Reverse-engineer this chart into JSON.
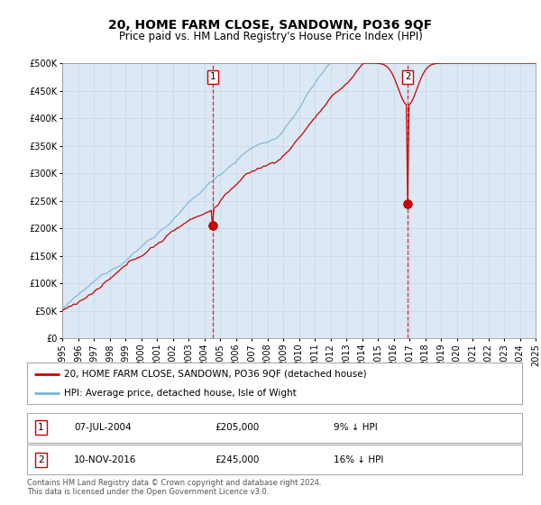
{
  "title": "20, HOME FARM CLOSE, SANDOWN, PO36 9QF",
  "subtitle": "Price paid vs. HM Land Registry's House Price Index (HPI)",
  "hpi_color": "#7ab4d8",
  "price_color": "#cc0000",
  "plot_bg": "#dce8f4",
  "grid_color": "#b8cfe0",
  "ylim": [
    0,
    500000
  ],
  "yticks": [
    0,
    50000,
    100000,
    150000,
    200000,
    250000,
    300000,
    350000,
    400000,
    450000,
    500000
  ],
  "sale1_year": 2004.52,
  "sale1_price": 205000,
  "sale2_year": 2016.86,
  "sale2_price": 245000,
  "legend_line1": "20, HOME FARM CLOSE, SANDOWN, PO36 9QF (detached house)",
  "legend_line2": "HPI: Average price, detached house, Isle of Wight",
  "footnote": "Contains HM Land Registry data © Crown copyright and database right 2024.\nThis data is licensed under the Open Government Licence v3.0.",
  "xmin": 1995,
  "xmax": 2025
}
